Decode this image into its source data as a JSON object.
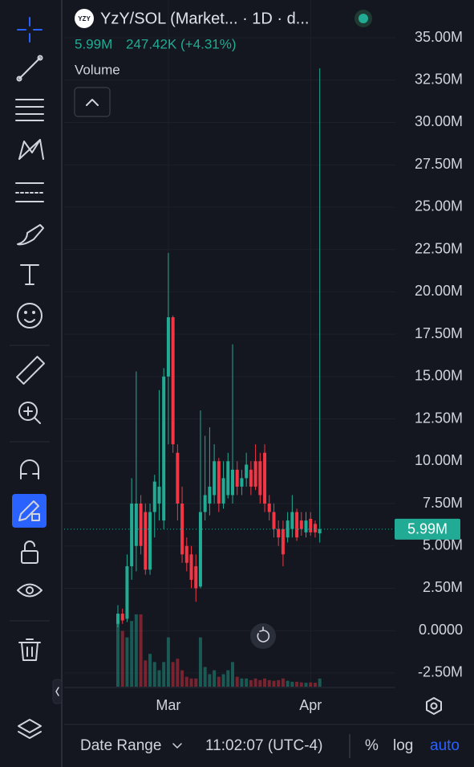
{
  "header": {
    "logo": "YZY",
    "symbol": "YzY/SOL (Market... · 1D · d...",
    "price": "5.99M",
    "change": "247.42K (+4.31%)",
    "pane_label": "Volume"
  },
  "footer": {
    "range": "Date Range",
    "clock": "11:02:07 (UTC-4)",
    "percent": "%",
    "log": "log",
    "auto": "auto"
  },
  "chart_data": {
    "type": "candlestick",
    "categories": [
      null,
      null,
      null,
      null,
      null,
      null,
      null,
      null,
      null,
      null,
      null,
      "Mar",
      null,
      null,
      null,
      null,
      null,
      null,
      null,
      null,
      null,
      null,
      null,
      null,
      null,
      null,
      null,
      null,
      null,
      null,
      null,
      null,
      null,
      null,
      null,
      null,
      null,
      null,
      null,
      null,
      null,
      null,
      "Apr",
      null,
      null
    ],
    "open": [
      0.4,
      1.0,
      0.7,
      3.8,
      5.0,
      7.5,
      7.0,
      3.6,
      7.0,
      7.5,
      6.5,
      15.0,
      18.5,
      10.5,
      7.5,
      5.0,
      4.5,
      3.8,
      2.6,
      7.0,
      7.5,
      8.0,
      10.0,
      7.5,
      8.0,
      8.0,
      9.5,
      8.5,
      9.0,
      9.5,
      10.0,
      10.0,
      10.5,
      7.5,
      7.0,
      6.0,
      6.0,
      5.5,
      6.0,
      7.0,
      6.5,
      5.8,
      6.6,
      6.3,
      5.74
    ],
    "high": [
      1.5,
      1.3,
      4.5,
      9.0,
      15.3,
      8.0,
      7.5,
      7.5,
      9.2,
      14.2,
      15.5,
      22.3,
      18.6,
      11.0,
      8.5,
      5.5,
      5.0,
      4.5,
      13.0,
      11.5,
      12.0,
      11.0,
      10.2,
      10.0,
      10.5,
      16.9,
      10.0,
      9.5,
      10.5,
      10.0,
      11.0,
      10.5,
      11.0,
      8.0,
      7.5,
      6.5,
      6.5,
      7.0,
      8.0,
      7.2,
      7.0,
      7.0,
      7.0,
      6.5,
      33.2
    ],
    "low": [
      0.2,
      0.4,
      0.5,
      3.0,
      3.5,
      4.5,
      3.3,
      3.3,
      5.5,
      6.5,
      6.0,
      11.0,
      10.5,
      6.5,
      4.0,
      3.5,
      2.5,
      1.7,
      2.5,
      6.5,
      6.8,
      7.5,
      7.0,
      7.2,
      7.8,
      7.5,
      8.0,
      8.0,
      8.5,
      8.0,
      8.3,
      7.5,
      7.0,
      6.5,
      5.5,
      5.0,
      3.8,
      5.2,
      5.5,
      5.3,
      5.6,
      5.5,
      5.6,
      5.5,
      5.2
    ],
    "close": [
      1.0,
      0.6,
      3.8,
      7.5,
      7.5,
      5.0,
      3.6,
      7.0,
      8.8,
      8.5,
      15.0,
      18.5,
      11.0,
      7.5,
      4.5,
      4.0,
      3.0,
      2.5,
      7.0,
      8.0,
      8.5,
      10.0,
      7.5,
      9.0,
      10.0,
      9.5,
      8.5,
      9.0,
      9.8,
      8.5,
      8.5,
      8.0,
      7.5,
      7.0,
      6.0,
      5.5,
      4.5,
      6.5,
      7.0,
      5.5,
      6.0,
      6.5,
      5.8,
      5.8,
      5.99
    ],
    "volume": [
      2100000,
      1700000,
      1500000,
      2000000,
      2200000,
      2200000,
      800000,
      1000000,
      750000,
      500000,
      750000,
      1500000,
      750000,
      850000,
      500000,
      300000,
      250000,
      250000,
      1500000,
      600000,
      380000,
      500000,
      300000,
      380000,
      500000,
      750000,
      300000,
      250000,
      250000,
      200000,
      250000,
      200000,
      250000,
      200000,
      180000,
      200000,
      250000,
      180000,
      150000,
      150000,
      130000,
      120000,
      130000,
      120000,
      247420
    ],
    "up_color": "#22ab94",
    "down_color": "#f23645",
    "ylim": [
      -3.31,
      36.85
    ],
    "yticks": [
      {
        "value": 35,
        "label": "35.00M"
      },
      {
        "value": 32.5,
        "label": "32.50M"
      },
      {
        "value": 30,
        "label": "30.00M"
      },
      {
        "value": 27.5,
        "label": "27.50M"
      },
      {
        "value": 25,
        "label": "25.00M"
      },
      {
        "value": 22.5,
        "label": "22.50M"
      },
      {
        "value": 20,
        "label": "20.00M"
      },
      {
        "value": 17.5,
        "label": "17.50M"
      },
      {
        "value": 15,
        "label": "15.00M"
      },
      {
        "value": 12.5,
        "label": "12.50M"
      },
      {
        "value": 10,
        "label": "10.00M"
      },
      {
        "value": 7.5,
        "label": "7.50M"
      },
      {
        "value": 5,
        "label": "5.00M"
      },
      {
        "value": 2.5,
        "label": "2.50M"
      },
      {
        "value": 0,
        "label": "0.0000"
      },
      {
        "value": -2.5,
        "label": "-2.50M"
      }
    ],
    "last_value": 5.99,
    "last_label": "5.99M",
    "grid": true
  }
}
